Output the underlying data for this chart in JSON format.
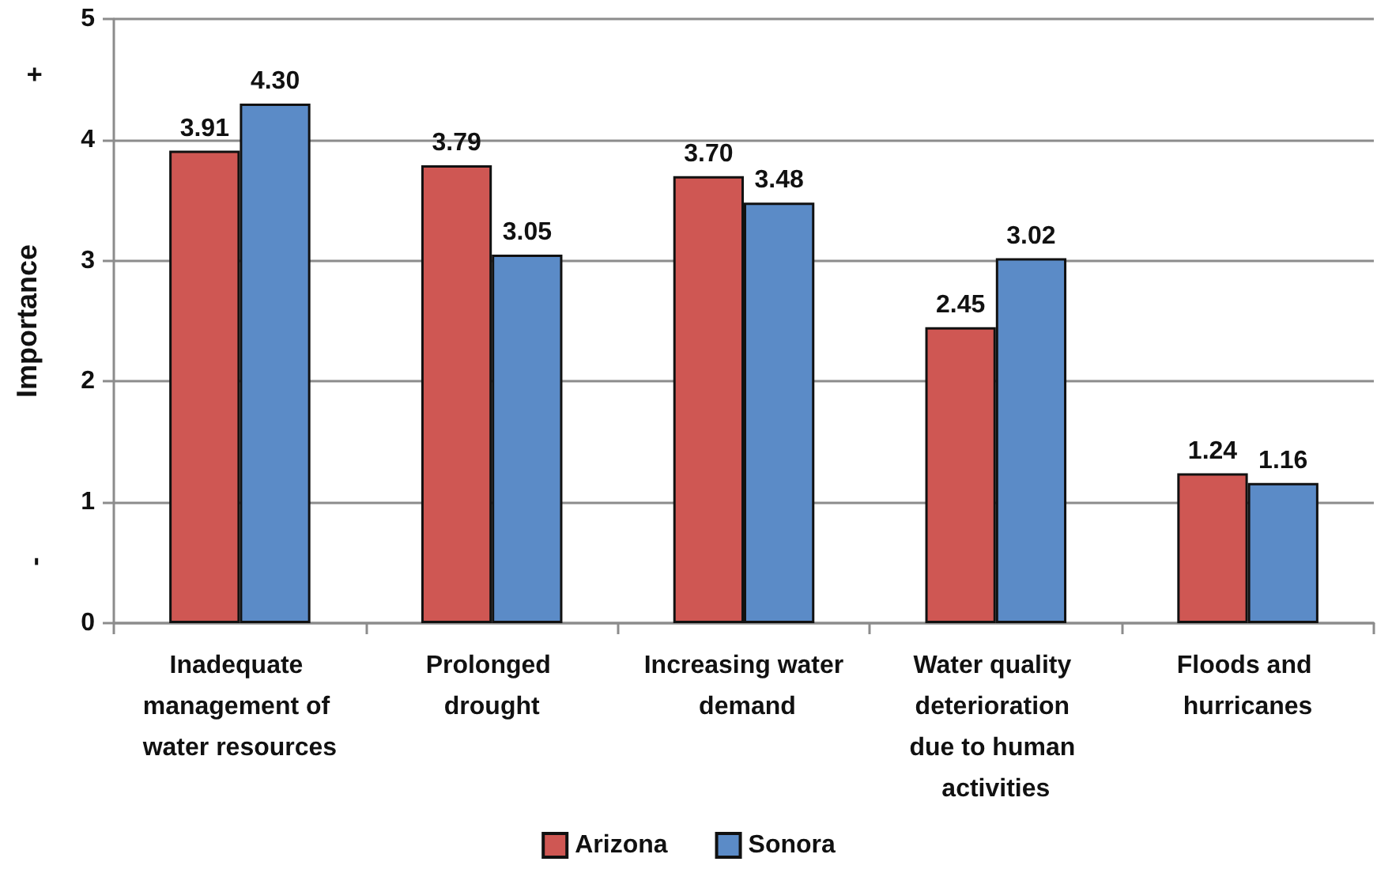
{
  "chart_data": {
    "type": "bar",
    "categories": [
      "Inadequate management of water resources",
      "Prolonged drought",
      "Increasing water demand",
      "Water quality deterioration due to human activities",
      "Floods and hurricanes"
    ],
    "series": [
      {
        "name": "Arizona",
        "color": "#cf5753",
        "values": [
          3.91,
          3.79,
          3.7,
          2.45,
          1.24
        ],
        "value_labels": [
          "3.91",
          "3.79",
          "3.70",
          "2.45",
          "1.24"
        ]
      },
      {
        "name": "Sonora",
        "color": "#5b8bc7",
        "values": [
          4.3,
          3.05,
          3.48,
          3.02,
          1.16
        ],
        "value_labels": [
          "4.30",
          "3.05",
          "3.48",
          "3.02",
          "1.16"
        ]
      }
    ],
    "ylabel": "Importance",
    "ylim": [
      0,
      5
    ],
    "yticks": [
      0,
      1,
      2,
      3,
      4,
      5
    ],
    "grid": "y",
    "legend": "bottom",
    "annotations": [
      "+",
      "-"
    ]
  }
}
